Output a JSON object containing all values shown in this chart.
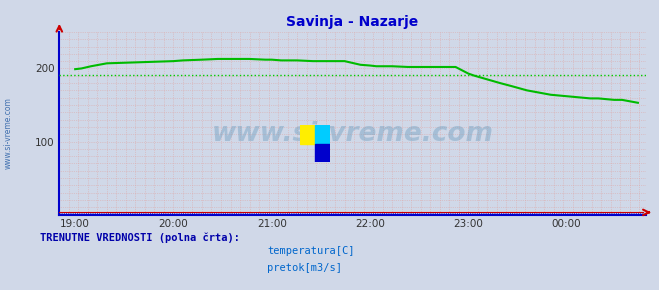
{
  "title": "Savinja - Nazarje",
  "title_color": "#0000cc",
  "bg_color": "#d0d8e8",
  "plot_bg_color": "#d0d8e8",
  "ylim": [
    0,
    250
  ],
  "xlim": [
    0,
    370
  ],
  "yticks": [
    100,
    200
  ],
  "xtick_labels": [
    "19:00",
    "20:00",
    "21:00",
    "22:00",
    "23:00",
    "00:00"
  ],
  "xtick_positions": [
    10,
    72,
    134,
    196,
    258,
    320
  ],
  "green_line_x": [
    10,
    14,
    20,
    30,
    72,
    78,
    90,
    100,
    110,
    120,
    130,
    134,
    140,
    150,
    160,
    170,
    180,
    190,
    196,
    200,
    210,
    220,
    230,
    240,
    250,
    258,
    262,
    270,
    278,
    285,
    290,
    295,
    300,
    305,
    310,
    315,
    320,
    325,
    330,
    335,
    340,
    345,
    350,
    355,
    360,
    365
  ],
  "green_line_y": [
    199,
    200,
    203,
    207,
    210,
    211,
    212,
    213,
    213,
    213,
    212,
    212,
    211,
    211,
    210,
    210,
    210,
    205,
    204,
    203,
    203,
    202,
    202,
    202,
    202,
    193,
    190,
    185,
    180,
    176,
    173,
    170,
    168,
    166,
    164,
    163,
    162,
    161,
    160,
    159,
    159,
    158,
    157,
    157,
    155,
    153
  ],
  "dotted_green_y": 191,
  "temp_line_y": 3,
  "watermark_text": "www.si-vreme.com",
  "watermark_color": "#6699bb",
  "watermark_alpha": 0.4,
  "legend_title": "TRENUTNE VREDNOSTI (polna črta):",
  "legend_title_color": "#0000aa",
  "legend_items": [
    {
      "label": "temperatura[C]",
      "color": "#cc0000"
    },
    {
      "label": "pretok[m3/s]",
      "color": "#00aa00"
    }
  ],
  "grid_v_color": "#ddaaaa",
  "grid_h_color": "#ddaaaa",
  "axis_color": "#0000cc",
  "left_label_text": "www.si-vreme.com",
  "left_label_color": "#3366aa"
}
